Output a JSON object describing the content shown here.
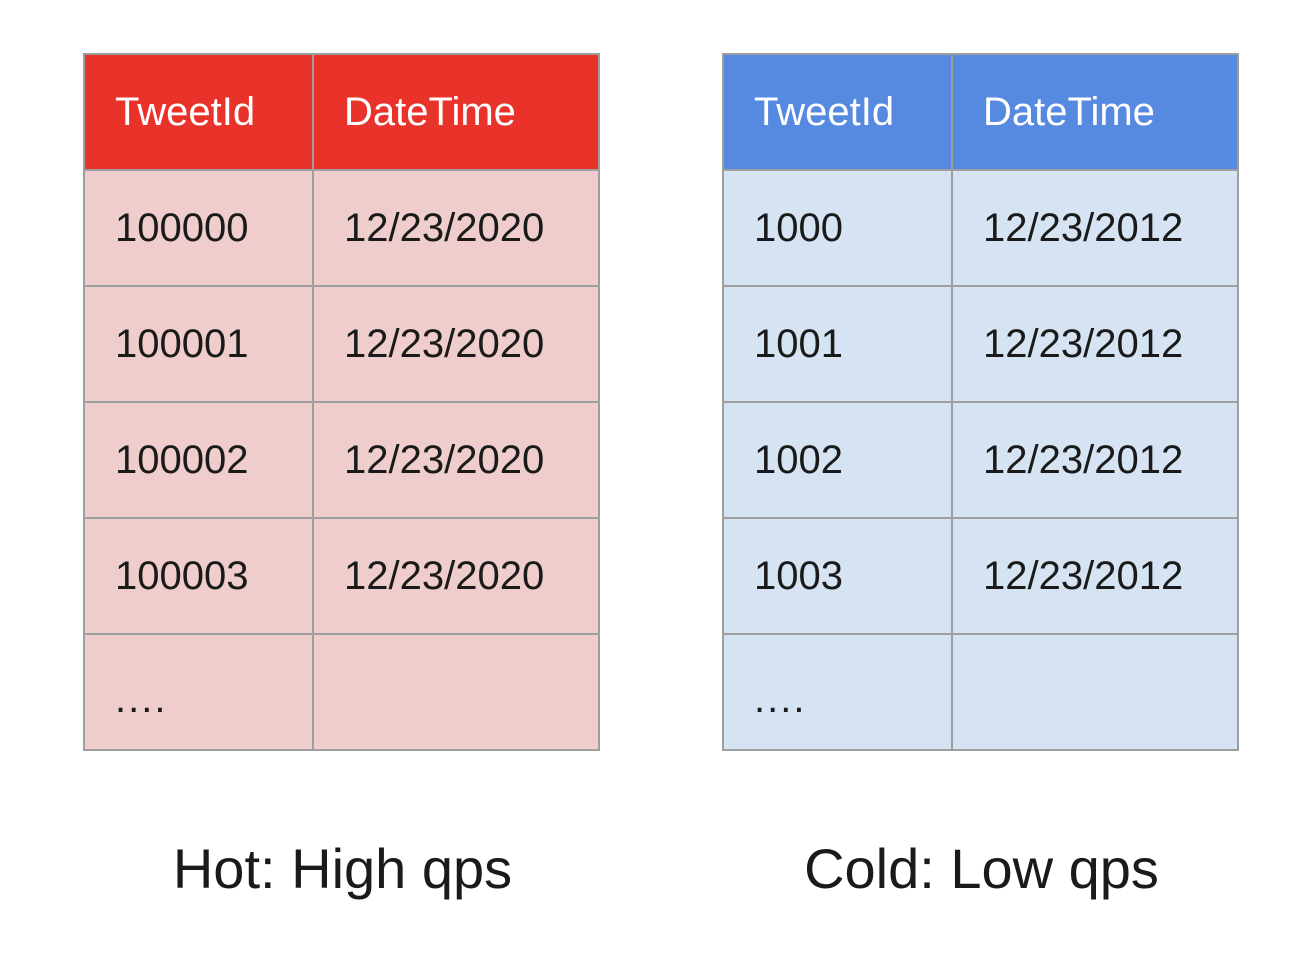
{
  "hot": {
    "header_color": "#e8322a",
    "cell_color": "#efcdcc",
    "columns": [
      "TweetId",
      "DateTime"
    ],
    "rows": [
      [
        "100000",
        "12/23/2020"
      ],
      [
        "100001",
        "12/23/2020"
      ],
      [
        "100002",
        "12/23/2020"
      ],
      [
        "100003",
        "12/23/2020"
      ],
      [
        "....",
        ""
      ]
    ],
    "caption": "Hot: High qps"
  },
  "cold": {
    "header_color": "#5689e0",
    "cell_color": "#d6e3f3",
    "columns": [
      "TweetId",
      "DateTime"
    ],
    "rows": [
      [
        "1000",
        "12/23/2012"
      ],
      [
        "1001",
        "12/23/2012"
      ],
      [
        "1002",
        "12/23/2012"
      ],
      [
        "1003",
        "12/23/2012"
      ],
      [
        "....",
        ""
      ]
    ],
    "caption": "Cold: Low qps"
  }
}
